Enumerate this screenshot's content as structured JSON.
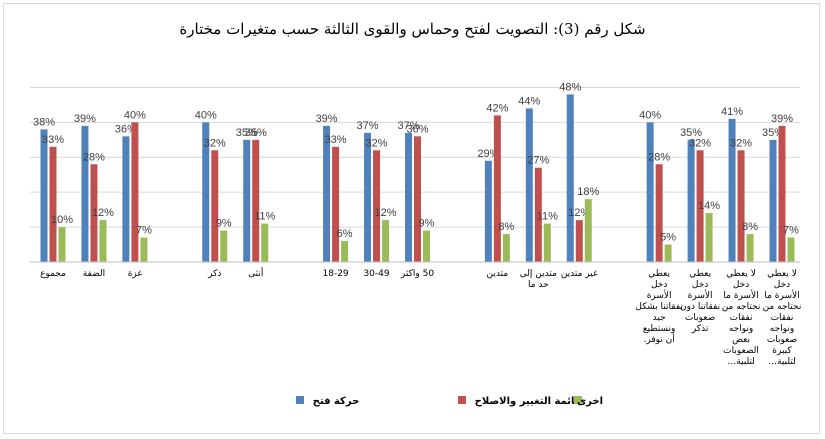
{
  "chart_data": {
    "type": "bar",
    "title": "شكل رقم (3): التصويت لفتح وحماس والقوى الثالثة حسب متغيرات مختارة",
    "xlabel": "",
    "ylabel": "",
    "ylim": [
      0,
      55
    ],
    "grid": true,
    "legend_position": "bottom",
    "categories": [
      [
        "مجموع"
      ],
      [
        "الضفة"
      ],
      [
        "غزة"
      ],
      [
        "ذكر"
      ],
      [
        "أنثى"
      ],
      [
        "18-29"
      ],
      [
        "30-49"
      ],
      [
        "50 واكثر"
      ],
      [
        "متدين"
      ],
      [
        "متدين إلى",
        "حد ما"
      ],
      [
        "غير متدين"
      ],
      [
        "يعطي",
        "دخل",
        "الأسرة",
        "نفقاتنا بشكل",
        "جيد",
        "ونستطيع",
        "أن نوفر."
      ],
      [
        "يعطي",
        "دخل",
        "الأسرة",
        "نفقاتنا دون",
        "صعوبات",
        "تذكر"
      ],
      [
        "لا يعطي",
        "دخل",
        "الأسرة ما",
        "نحتاجه من",
        "نفقات",
        "ونواجه",
        "بعض",
        "الصعوبات",
        "لتلبية…"
      ],
      [
        "لا يعطي",
        "دخل",
        "الأسرة ما",
        "نحتاجه من",
        "نفقات",
        "ونواجه",
        "صعوبات",
        "كبيرة",
        "لتلبية…"
      ]
    ],
    "groups": [
      [
        0,
        1,
        2
      ],
      [
        3,
        4
      ],
      [
        5,
        6,
        7
      ],
      [
        8,
        9,
        10
      ],
      [
        11,
        12,
        13,
        14
      ]
    ],
    "series": [
      {
        "name": "حركة فتح",
        "color": "#4f81bd",
        "values": [
          38,
          39,
          36,
          40,
          35,
          39,
          37,
          37,
          29,
          44,
          48,
          40,
          35,
          41,
          35
        ]
      },
      {
        "name": "قائمة التغيير والاصلاح",
        "color": "#c0504d",
        "values": [
          33,
          28,
          40,
          32,
          35,
          33,
          32,
          36,
          42,
          27,
          12,
          28,
          32,
          32,
          39
        ]
      },
      {
        "name": "اخرى",
        "color": "#9bbb59",
        "values": [
          10,
          12,
          7,
          9,
          11,
          6,
          12,
          9,
          8,
          11,
          18,
          5,
          14,
          8,
          7
        ]
      }
    ]
  }
}
